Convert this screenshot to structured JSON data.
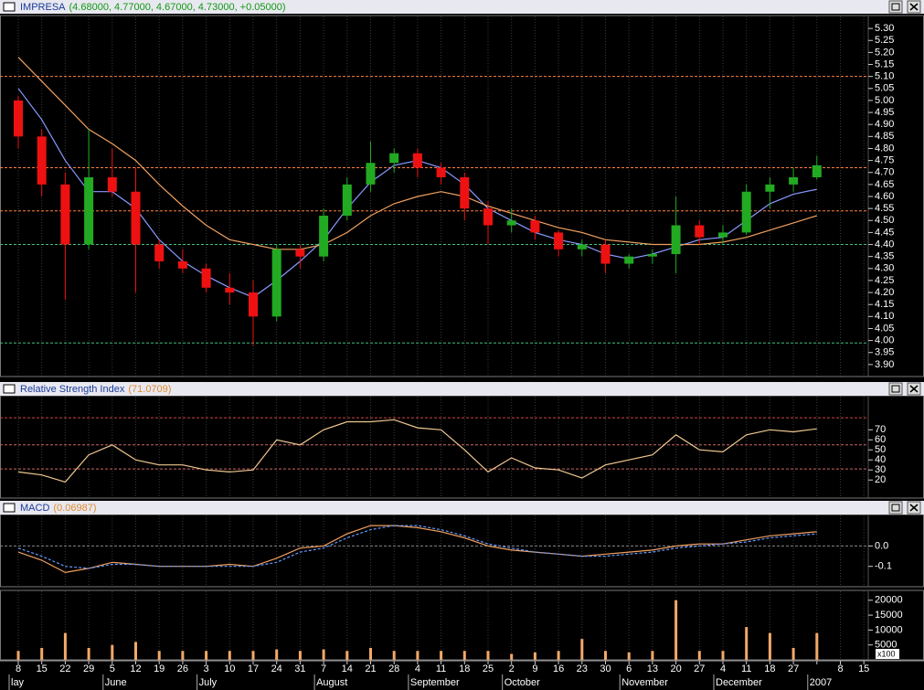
{
  "chart_data": [
    {
      "type": "candlestick",
      "title": "IMPRESA",
      "title_values": "(4.68000, 4.77000, 4.67000, 4.73000, +0.05000)",
      "ylim": [
        3.85,
        5.35
      ],
      "yticks": [
        {
          "value": 5.3,
          "label": "5.30"
        },
        5.25,
        {
          "value": 5.2,
          "label": "5.20"
        },
        5.15,
        {
          "value": 5.1,
          "label": "5.10"
        },
        5.05,
        {
          "value": 5,
          "label": "5.00"
        },
        4.95,
        {
          "value": 4.9,
          "label": "4.90"
        },
        4.85,
        {
          "value": 4.8,
          "label": "4.80"
        },
        4.75,
        {
          "value": 4.7,
          "label": "4.70"
        },
        4.65,
        {
          "value": 4.6,
          "label": "4.60"
        },
        4.55,
        {
          "value": 4.5,
          "label": "4.50"
        },
        4.45,
        {
          "value": 4.4,
          "label": "4.40"
        },
        4.35,
        {
          "value": 4.3,
          "label": "4.30"
        },
        4.25,
        {
          "value": 4.2,
          "label": "4.20"
        },
        4.15,
        {
          "value": 4.1,
          "label": "4.10"
        },
        4.05,
        {
          "value": 4,
          "label": "4.00"
        },
        3.95,
        {
          "value": 3.9,
          "label": "3.90"
        }
      ],
      "up_color": "#22aa22",
      "down_color": "#ee1111",
      "open": [
        5.0,
        4.85,
        4.65,
        4.4,
        4.68,
        4.62,
        4.4,
        4.33,
        4.3,
        4.22,
        4.2,
        4.1,
        4.38,
        4.35,
        4.52,
        4.65,
        4.74,
        4.78,
        4.72,
        4.68,
        4.55,
        4.48,
        4.5,
        4.45,
        4.38,
        4.4,
        4.32,
        4.35,
        4.36,
        4.48,
        4.43,
        4.45,
        4.62,
        4.65,
        4.68,
        null,
        null
      ],
      "high": [
        5.02,
        4.88,
        4.7,
        4.88,
        4.8,
        4.72,
        4.42,
        4.38,
        4.32,
        4.28,
        4.25,
        4.4,
        4.4,
        4.55,
        4.68,
        4.83,
        4.8,
        4.8,
        4.74,
        4.7,
        4.58,
        4.55,
        4.52,
        4.46,
        4.42,
        4.42,
        4.36,
        4.38,
        4.6,
        4.5,
        4.48,
        4.65,
        4.68,
        4.72,
        4.77,
        null,
        null
      ],
      "low": [
        4.8,
        4.6,
        4.17,
        4.38,
        4.6,
        4.2,
        4.3,
        4.28,
        4.2,
        4.15,
        3.98,
        4.08,
        4.3,
        4.33,
        4.5,
        4.62,
        4.7,
        4.68,
        4.65,
        4.5,
        4.4,
        4.45,
        4.42,
        4.35,
        4.35,
        4.28,
        4.3,
        4.32,
        4.28,
        4.4,
        4.4,
        4.44,
        4.55,
        4.62,
        4.67,
        null,
        null
      ],
      "close": [
        4.85,
        4.65,
        4.4,
        4.68,
        4.62,
        4.4,
        4.33,
        4.3,
        4.22,
        4.2,
        4.1,
        4.38,
        4.35,
        4.52,
        4.65,
        4.74,
        4.78,
        4.72,
        4.68,
        4.55,
        4.48,
        4.5,
        4.45,
        4.38,
        4.4,
        4.32,
        4.35,
        4.36,
        4.48,
        4.43,
        4.45,
        4.62,
        4.65,
        4.68,
        4.73,
        null,
        null
      ],
      "overlays": [
        {
          "color": "#8899ff",
          "values": [
            5.05,
            4.92,
            4.75,
            4.62,
            4.62,
            4.55,
            4.42,
            4.33,
            4.27,
            4.22,
            4.18,
            4.25,
            4.33,
            4.42,
            4.55,
            4.66,
            4.73,
            4.75,
            4.72,
            4.65,
            4.55,
            4.5,
            4.45,
            4.42,
            4.4,
            4.36,
            4.34,
            4.36,
            4.39,
            4.42,
            4.43,
            4.5,
            4.57,
            4.61,
            4.63,
            null,
            null
          ]
        },
        {
          "color": "#f0a060",
          "values": [
            5.18,
            5.08,
            4.98,
            4.88,
            4.82,
            4.75,
            4.65,
            4.56,
            4.48,
            4.42,
            4.4,
            4.38,
            4.38,
            4.4,
            4.45,
            4.52,
            4.57,
            4.6,
            4.62,
            4.6,
            4.56,
            4.53,
            4.5,
            4.47,
            4.45,
            4.42,
            4.41,
            4.4,
            4.4,
            4.4,
            4.41,
            4.43,
            4.46,
            4.49,
            4.52,
            null,
            null
          ]
        }
      ],
      "levels": [
        {
          "value": 5.1,
          "color": "#ff8040"
        },
        {
          "value": 4.72,
          "color": "#ff8040"
        },
        {
          "value": 4.54,
          "color": "#ff8040"
        },
        {
          "value": 4.4,
          "color": "#40c080"
        },
        {
          "value": 3.99,
          "color": "#40c080"
        }
      ]
    },
    {
      "type": "line",
      "title": "Relative Strength Index",
      "title_values": "(71.0709)",
      "ylim": [
        2,
        103
      ],
      "yticks": [
        70,
        60,
        50,
        40,
        30,
        20
      ],
      "series": [
        {
          "color": "#f0c890",
          "values": [
            28,
            25,
            18,
            45,
            55,
            40,
            35,
            35,
            30,
            28,
            30,
            60,
            55,
            70,
            78,
            78,
            80,
            72,
            70,
            50,
            28,
            42,
            32,
            30,
            22,
            35,
            40,
            45,
            65,
            50,
            48,
            65,
            70,
            68,
            71,
            null,
            null
          ]
        }
      ],
      "levels": [
        {
          "value": 82,
          "color": "#cc4444"
        },
        {
          "value": 55,
          "color": "#cc6666"
        },
        {
          "value": 31,
          "color": "#cc6666"
        }
      ]
    },
    {
      "type": "line",
      "title": "MACD",
      "title_values": "(0.06987)",
      "ylim": [
        -0.2,
        0.15
      ],
      "yticks": [
        {
          "value": 0,
          "label": "0.0"
        },
        {
          "value": -0.1,
          "label": "-0.1"
        }
      ],
      "series": [
        {
          "color": "#f0a060",
          "values": [
            -0.03,
            -0.07,
            -0.13,
            -0.11,
            -0.08,
            -0.09,
            -0.1,
            -0.1,
            -0.1,
            -0.09,
            -0.1,
            -0.06,
            -0.01,
            0.0,
            0.06,
            0.1,
            0.1,
            0.09,
            0.07,
            0.04,
            0.0,
            -0.02,
            -0.03,
            -0.04,
            -0.05,
            -0.04,
            -0.03,
            -0.02,
            0.0,
            0.01,
            0.01,
            0.03,
            0.05,
            0.06,
            0.07,
            null,
            null
          ]
        },
        {
          "color": "#6699ff",
          "dashed": true,
          "values": [
            -0.01,
            -0.05,
            -0.1,
            -0.11,
            -0.09,
            -0.09,
            -0.1,
            -0.1,
            -0.1,
            -0.1,
            -0.1,
            -0.08,
            -0.03,
            -0.01,
            0.04,
            0.08,
            0.1,
            0.1,
            0.08,
            0.05,
            0.01,
            -0.01,
            -0.03,
            -0.04,
            -0.05,
            -0.05,
            -0.04,
            -0.03,
            -0.01,
            0.0,
            0.01,
            0.02,
            0.04,
            0.05,
            0.06,
            null,
            null
          ]
        }
      ],
      "levels": [
        {
          "value": 0,
          "color": "#888888"
        }
      ]
    },
    {
      "type": "bar",
      "unit_label": "x100",
      "color": "#f4a868",
      "ylim": [
        0,
        23000
      ],
      "yticks": [
        20000,
        15000,
        10000,
        5000
      ],
      "values": [
        3000,
        4000,
        9000,
        4000,
        5000,
        6000,
        3000,
        3000,
        3000,
        3000,
        3000,
        3500,
        3000,
        3500,
        3000,
        4000,
        3000,
        3000,
        3000,
        3000,
        3000,
        2000,
        2500,
        3000,
        7000,
        3000,
        2500,
        3000,
        20000,
        3000,
        3000,
        11000,
        9000,
        4000,
        9000,
        null,
        null
      ],
      "categories": [
        "8",
        "15",
        "22",
        "29",
        "5",
        "12",
        "19",
        "26",
        "3",
        "10",
        "17",
        "24",
        "31",
        "7",
        "14",
        "21",
        "28",
        "4",
        "11",
        "18",
        "25",
        "2",
        "9",
        "16",
        "23",
        "30",
        "6",
        "13",
        "20",
        "27",
        "4",
        "11",
        "18",
        "27",
        null,
        "8",
        "15"
      ],
      "month_labels": [
        "lay",
        null,
        null,
        null,
        "June",
        null,
        null,
        null,
        "July",
        null,
        null,
        null,
        null,
        "August",
        null,
        null,
        null,
        "September",
        null,
        null,
        null,
        "October",
        null,
        null,
        null,
        null,
        "November",
        null,
        null,
        null,
        "December",
        null,
        null,
        null,
        "2007",
        null,
        null
      ]
    }
  ]
}
